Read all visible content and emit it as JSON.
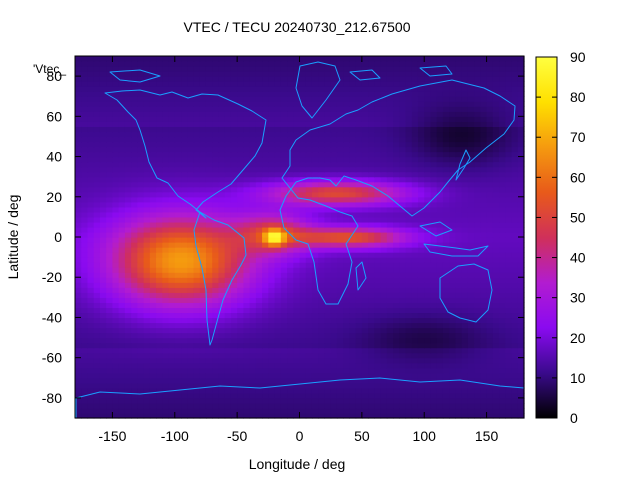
{
  "chart_data": {
    "type": "heatmap",
    "title": "VTEC / TECU 20240730_212.67500",
    "xlabel": "Longitude / deg",
    "ylabel": "Latitude / deg",
    "xlim": [
      -180,
      180
    ],
    "ylim": [
      -90,
      90
    ],
    "xticks": [
      "-150",
      "-100",
      "-50",
      "0",
      "50",
      "100",
      "150"
    ],
    "xtick_values": [
      -150,
      -100,
      -50,
      0,
      50,
      100,
      150
    ],
    "yticks": [
      "-80",
      "-60",
      "-40",
      "-20",
      "0",
      "20",
      "40",
      "60",
      "80"
    ],
    "ytick_values": [
      -80,
      -60,
      -40,
      -20,
      0,
      20,
      40,
      60,
      80
    ],
    "colorbar": {
      "range": [
        0,
        90
      ],
      "ticks": [
        "0",
        "10",
        "20",
        "30",
        "40",
        "50",
        "60",
        "70",
        "80",
        "90"
      ],
      "tick_values": [
        0,
        10,
        20,
        30,
        40,
        50,
        60,
        70,
        80,
        90
      ],
      "palette": [
        "#000000",
        "#3a0a8c",
        "#8a0af0",
        "#b21cd0",
        "#d0305a",
        "#e85a1a",
        "#f59a0f",
        "#ffe000",
        "#ffff40"
      ]
    },
    "key_label": "'Vtec_",
    "grid": false,
    "coastline_color": "#1aa0ff",
    "features": [
      {
        "name": "main-enhancement",
        "lon": -95,
        "lat": -12,
        "peak": 70
      },
      {
        "name": "atlantic-peak",
        "lon": -20,
        "lat": 0,
        "peak": 88
      },
      {
        "name": "equatorial-tongue",
        "lon": 40,
        "lat": 0,
        "peak": 55
      },
      {
        "name": "north-african-arc",
        "lon": 30,
        "lat": 22,
        "peak": 55
      }
    ]
  }
}
